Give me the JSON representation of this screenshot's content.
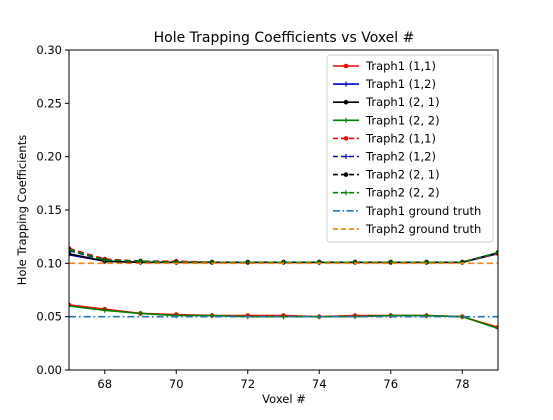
{
  "chart_data": {
    "type": "line",
    "title": "Hole Trapping Coefficients vs Voxel #",
    "xlabel": "Voxel #",
    "ylabel": "Hole Trapping Coefficients",
    "xlim": [
      67,
      79
    ],
    "ylim": [
      0.0,
      0.3
    ],
    "xticks": [
      "68",
      "70",
      "72",
      "74",
      "76",
      "78"
    ],
    "yticks": [
      "0.00",
      "0.05",
      "0.10",
      "0.15",
      "0.20",
      "0.25",
      "0.30"
    ],
    "grid": false,
    "legend_placement": "top-right",
    "x": [
      67,
      68,
      69,
      70,
      71,
      72,
      73,
      74,
      75,
      76,
      77,
      78,
      79
    ],
    "series": [
      {
        "name": "Traph1 (1,1)",
        "color": "#ff0000",
        "linestyle": "solid",
        "marker": "dot",
        "values": [
          0.061,
          0.057,
          0.053,
          0.052,
          0.051,
          0.051,
          0.051,
          0.05,
          0.051,
          0.051,
          0.051,
          0.05,
          0.04
        ]
      },
      {
        "name": "Traph1 (1,2)",
        "color": "#0000cd",
        "linestyle": "solid",
        "marker": "plus",
        "values": [
          0.108,
          0.102,
          0.101,
          0.101,
          0.101,
          0.101,
          0.101,
          0.101,
          0.101,
          0.101,
          0.101,
          0.101,
          0.109
        ]
      },
      {
        "name": "Traph1 (2, 1)",
        "color": "#000000",
        "linestyle": "solid",
        "marker": "dot",
        "values": [
          0.109,
          0.102,
          0.101,
          0.101,
          0.101,
          0.101,
          0.101,
          0.101,
          0.101,
          0.101,
          0.101,
          0.101,
          0.11
        ]
      },
      {
        "name": "Traph1 (2, 2)",
        "color": "#008000",
        "linestyle": "solid",
        "marker": "plus",
        "values": [
          0.06,
          0.056,
          0.053,
          0.051,
          0.051,
          0.05,
          0.05,
          0.05,
          0.05,
          0.051,
          0.051,
          0.05,
          0.039
        ]
      },
      {
        "name": "Traph2 (1,1)",
        "color": "#ff0000",
        "linestyle": "dashed",
        "marker": "dot",
        "values": [
          0.114,
          0.104,
          0.102,
          0.102,
          0.101,
          0.101,
          0.101,
          0.101,
          0.101,
          0.101,
          0.101,
          0.101,
          0.109
        ]
      },
      {
        "name": "Traph2 (1,2)",
        "color": "#0000cd",
        "linestyle": "dashed",
        "marker": "plus",
        "values": [
          0.112,
          0.103,
          0.102,
          0.101,
          0.101,
          0.101,
          0.101,
          0.101,
          0.101,
          0.101,
          0.101,
          0.101,
          0.11
        ]
      },
      {
        "name": "Traph2 (2, 1)",
        "color": "#000000",
        "linestyle": "dashed",
        "marker": "dot",
        "values": [
          0.113,
          0.103,
          0.102,
          0.101,
          0.101,
          0.101,
          0.101,
          0.101,
          0.101,
          0.101,
          0.101,
          0.101,
          0.11
        ]
      },
      {
        "name": "Traph2 (2, 2)",
        "color": "#008000",
        "linestyle": "dashed",
        "marker": "plus",
        "values": [
          0.113,
          0.103,
          0.102,
          0.101,
          0.101,
          0.101,
          0.101,
          0.101,
          0.101,
          0.101,
          0.101,
          0.101,
          0.11
        ]
      },
      {
        "name": "Traph1 ground truth",
        "color": "#1f77b4",
        "linestyle": "dashdot",
        "marker": "none",
        "values": [
          0.05,
          0.05,
          0.05,
          0.05,
          0.05,
          0.05,
          0.05,
          0.05,
          0.05,
          0.05,
          0.05,
          0.05,
          0.05
        ]
      },
      {
        "name": "Traph2 ground truth",
        "color": "#ff7f0e",
        "linestyle": "dashed",
        "marker": "none",
        "values": [
          0.1,
          0.1,
          0.1,
          0.1,
          0.1,
          0.1,
          0.1,
          0.1,
          0.1,
          0.1,
          0.1,
          0.1,
          0.1
        ]
      }
    ]
  }
}
